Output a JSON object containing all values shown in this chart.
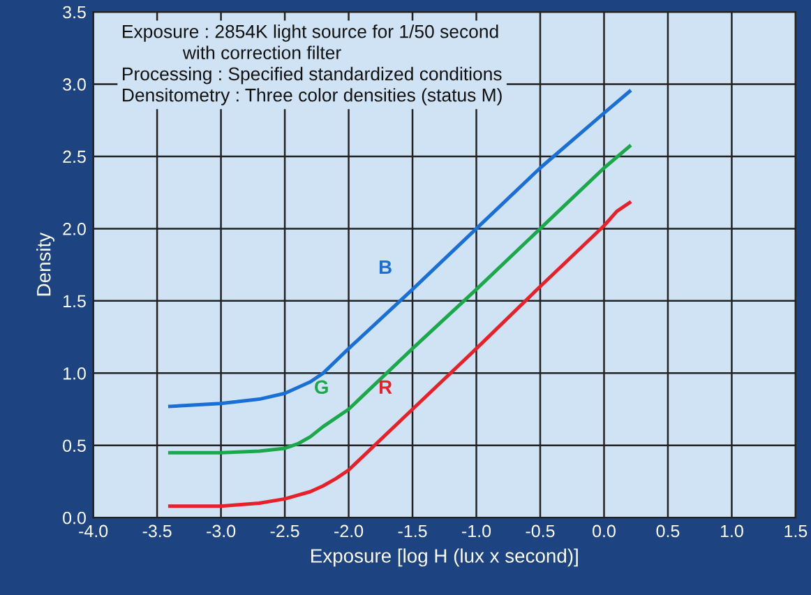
{
  "chart_data": {
    "type": "line",
    "xlabel": "Exposure [log H (lux x second)]",
    "ylabel": "Density",
    "annotations": [
      "Exposure : 2854K light source for 1/50 second\n            with correction filter\nProcessing : Specified standardized conditions\nDensitometry : Three color densities (status M)"
    ],
    "series": [
      {
        "name": "B",
        "color": "#1a6fd6",
        "x": [
          -3.4,
          -3.0,
          -2.7,
          -2.5,
          -2.3,
          -2.2,
          -2.0,
          -1.5,
          -1.0,
          -0.5,
          0.0,
          0.2
        ],
        "values": [
          0.77,
          0.79,
          0.82,
          0.86,
          0.94,
          1.0,
          1.17,
          1.58,
          2.0,
          2.42,
          2.8,
          2.95
        ]
      },
      {
        "name": "G",
        "color": "#1aa84a",
        "x": [
          -3.4,
          -3.0,
          -2.7,
          -2.5,
          -2.4,
          -2.3,
          -2.2,
          -2.0,
          -1.5,
          -1.0,
          -0.5,
          0.0,
          0.2
        ],
        "values": [
          0.45,
          0.45,
          0.46,
          0.48,
          0.51,
          0.56,
          0.63,
          0.75,
          1.17,
          1.58,
          2.0,
          2.42,
          2.57
        ]
      },
      {
        "name": "R",
        "color": "#e8202a",
        "x": [
          -3.4,
          -3.0,
          -2.7,
          -2.5,
          -2.3,
          -2.2,
          -2.1,
          -2.0,
          -1.5,
          -1.0,
          -0.5,
          0.0,
          0.1,
          0.2
        ],
        "values": [
          0.08,
          0.08,
          0.1,
          0.13,
          0.18,
          0.22,
          0.27,
          0.33,
          0.75,
          1.17,
          1.6,
          2.02,
          2.12,
          2.18
        ]
      }
    ],
    "xlim": [
      -4.0,
      1.5
    ],
    "xticks": [
      {
        "value": -4.0,
        "label": "-4.0"
      },
      {
        "value": -3.5,
        "label": "-3.5"
      },
      {
        "value": -3.0,
        "label": "-3.0"
      },
      {
        "value": -2.5,
        "label": "-2.5"
      },
      {
        "value": -2.0,
        "label": "-2.0"
      },
      {
        "value": -1.5,
        "label": "-1.5"
      },
      {
        "value": -1.0,
        "label": "-1.0"
      },
      {
        "value": -0.5,
        "label": "-0.5"
      },
      {
        "value": 0.0,
        "label": "0.0"
      },
      {
        "value": 0.5,
        "label": "0.5"
      },
      {
        "value": 1.0,
        "label": "1.0"
      },
      {
        "value": 1.5,
        "label": "1.5"
      }
    ],
    "ylim": [
      0.0,
      3.5
    ],
    "yticks": [
      {
        "value": 0.0,
        "label": "0.0"
      },
      {
        "value": 0.5,
        "label": "0.5"
      },
      {
        "value": 1.0,
        "label": "1.0"
      },
      {
        "value": 1.5,
        "label": "1.5"
      },
      {
        "value": 2.0,
        "label": "2.0"
      },
      {
        "value": 2.5,
        "label": "2.5"
      },
      {
        "value": 3.0,
        "label": "3.0"
      },
      {
        "value": 3.5,
        "label": "3.5"
      }
    ],
    "grid": true,
    "legend": false,
    "line_style": "solid",
    "marker": "none"
  }
}
